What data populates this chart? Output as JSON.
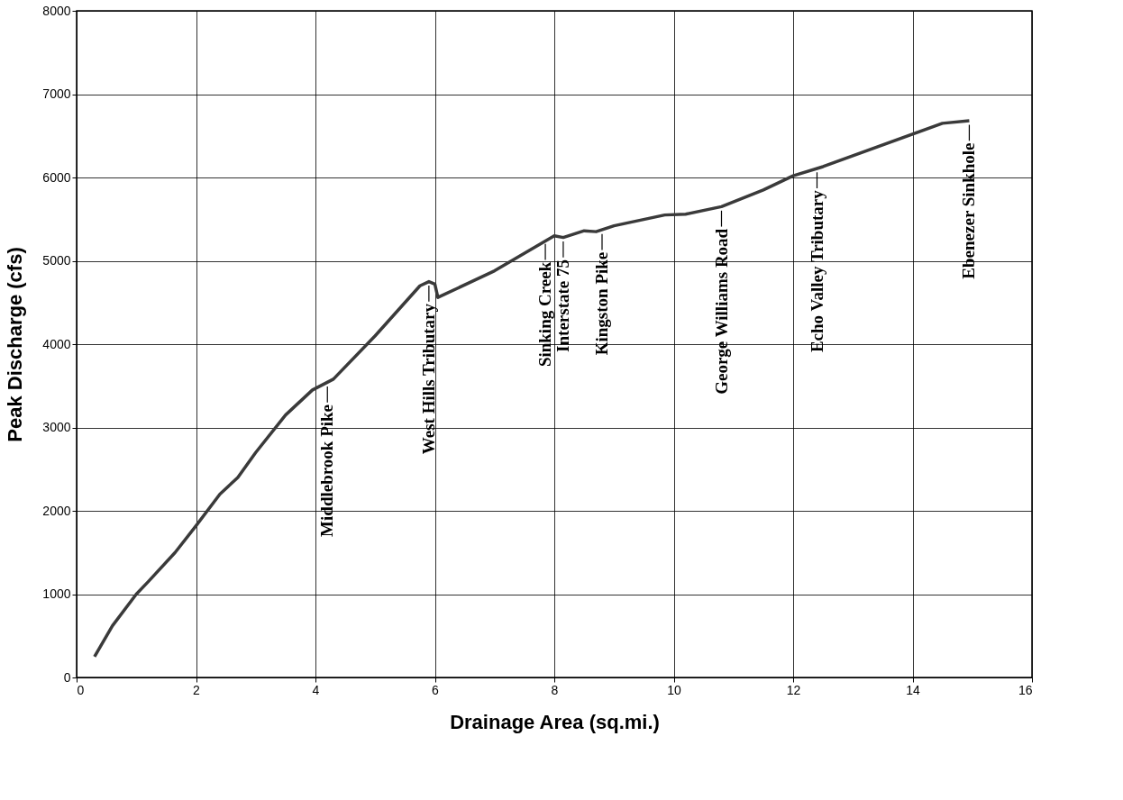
{
  "chart_data": {
    "type": "line",
    "xlabel": "Drainage Area (sq.mi.)",
    "ylabel": "Peak Discharge (cfs)",
    "x": [
      0.3,
      0.6,
      1.0,
      1.2,
      1.65,
      2.0,
      2.4,
      2.7,
      3.0,
      3.5,
      3.95,
      4.3,
      5.0,
      5.75,
      5.9,
      6.0,
      6.05,
      7.0,
      8.0,
      8.15,
      8.5,
      8.7,
      9.0,
      9.85,
      10.2,
      10.8,
      11.5,
      12.0,
      12.5,
      14.5,
      14.95
    ],
    "series": [
      {
        "color": "#3a3a3a",
        "values": [
          250,
          620,
          1000,
          1150,
          1500,
          1820,
          2200,
          2400,
          2700,
          3150,
          3450,
          3580,
          4100,
          4700,
          4750,
          4720,
          4560,
          4880,
          5300,
          5280,
          5360,
          5350,
          5420,
          5550,
          5560,
          5650,
          5850,
          6020,
          6130,
          6650,
          6680
        ]
      }
    ],
    "xlim": [
      0,
      16
    ],
    "xticks": [
      0,
      2,
      4,
      6,
      8,
      10,
      12,
      14,
      16
    ],
    "ylim": [
      0,
      8000
    ],
    "yticks": [
      0,
      1000,
      2000,
      3000,
      4000,
      5000,
      6000,
      7000,
      8000
    ],
    "grid": true,
    "marker": "none",
    "line_style": "solid",
    "annotations": [
      {
        "text": "Middlebrook Pike",
        "x": 4.2,
        "y": 3540
      },
      {
        "text": "West Hills Tributary",
        "x": 5.9,
        "y": 4750
      },
      {
        "text": "Sinking Creek",
        "x": 7.85,
        "y": 5250
      },
      {
        "text": "Interstate 75",
        "x": 8.15,
        "y": 5280
      },
      {
        "text": "Kingston Pike",
        "x": 8.8,
        "y": 5370
      },
      {
        "text": "George Williams Road",
        "x": 10.8,
        "y": 5650
      },
      {
        "text": "Echo Valley Tributary",
        "x": 12.4,
        "y": 6110
      },
      {
        "text": "Ebenezer Sinkhole",
        "x": 14.95,
        "y": 6680
      }
    ]
  }
}
